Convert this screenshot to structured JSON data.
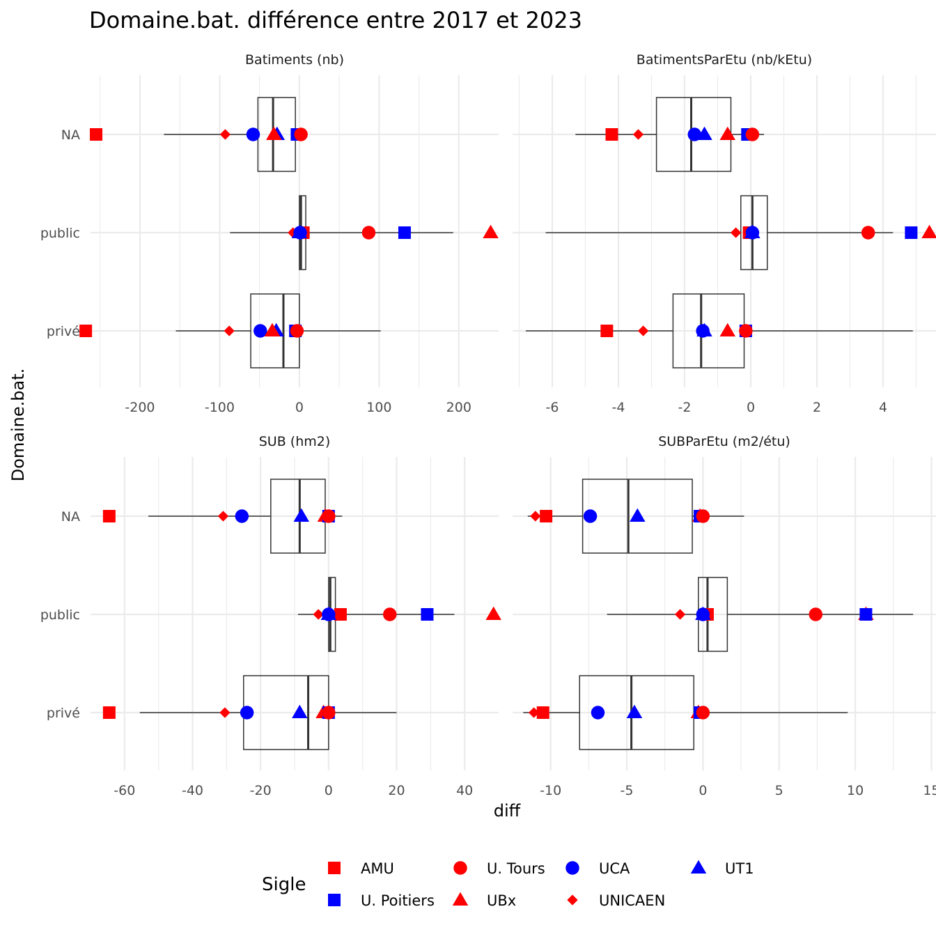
{
  "title": "Domaine.bat. différence entre 2017 et 2023",
  "chart_data": {
    "type": "boxplot-facets",
    "x_label": "diff",
    "y_label": "Domaine.bat.",
    "categories": [
      "NA",
      "public",
      "privé"
    ],
    "legend": {
      "title": "Sigle",
      "entries": [
        {
          "name": "AMU",
          "color": "#ff0000",
          "shape": "square"
        },
        {
          "name": "U. Tours",
          "color": "#ff0000",
          "shape": "circle"
        },
        {
          "name": "UCA",
          "color": "#0000ff",
          "shape": "circle"
        },
        {
          "name": "UT1",
          "color": "#0000ff",
          "shape": "triangle"
        },
        {
          "name": "U. Poitiers",
          "color": "#0000ff",
          "shape": "square"
        },
        {
          "name": "UBx",
          "color": "#ff0000",
          "shape": "triangle"
        },
        {
          "name": "UNICAEN",
          "color": "#ff0000",
          "shape": "diamond"
        }
      ]
    },
    "facets": [
      {
        "strip": "Batiments (nb)",
        "xlim": [
          -262,
          250
        ],
        "ticks": [
          -200,
          -100,
          0,
          100,
          200
        ],
        "boxes": {
          "NA": {
            "whisker_lo": -170,
            "q1": -52,
            "median": -33,
            "q3": -5,
            "whisker_hi": 3
          },
          "public": {
            "whisker_lo": -87,
            "q1": 0,
            "median": 2,
            "q3": 8,
            "whisker_hi": 193
          },
          "privé": {
            "whisker_lo": -155,
            "q1": -61,
            "median": -20,
            "q3": 0,
            "whisker_hi": 102
          }
        },
        "points": {
          "AMU": {
            "NA": -255,
            "public": 5,
            "privé": -268
          },
          "U. Tours": {
            "NA": 2,
            "public": 87,
            "privé": -3
          },
          "UCA": {
            "NA": -58,
            "public": 1,
            "privé": -49
          },
          "UT1": {
            "NA": -28,
            "public": 0,
            "privé": -29
          },
          "U. Poitiers": {
            "NA": -3,
            "public": 132,
            "privé": -5
          },
          "UBx": {
            "NA": -32,
            "public": 240,
            "privé": -34
          },
          "UNICAEN": {
            "NA": -93,
            "public": -8,
            "privé": -88
          }
        }
      },
      {
        "strip": "BatimentsParEtu (nb/kEtu)",
        "xlim": [
          -7.2,
          5.6
        ],
        "ticks": [
          -6,
          -4,
          -2,
          0,
          2,
          4
        ],
        "boxes": {
          "NA": {
            "whisker_lo": -5.3,
            "q1": -2.85,
            "median": -1.8,
            "q3": -0.6,
            "whisker_hi": 0.4
          },
          "public": {
            "whisker_lo": -6.2,
            "q1": -0.3,
            "median": 0.05,
            "q3": 0.5,
            "whisker_hi": 4.3
          },
          "privé": {
            "whisker_lo": -6.8,
            "q1": -2.35,
            "median": -1.5,
            "q3": -0.2,
            "whisker_hi": 4.9
          }
        },
        "points": {
          "AMU": {
            "NA": -4.2,
            "public": -0.05,
            "privé": -4.35
          },
          "U. Tours": {
            "NA": 0.05,
            "public": 3.55,
            "privé": -0.15
          },
          "UCA": {
            "NA": -1.7,
            "public": 0.05,
            "privé": -1.45
          },
          "UT1": {
            "NA": -1.4,
            "public": 0.05,
            "privé": -1.4
          },
          "U. Poitiers": {
            "NA": -0.1,
            "public": 4.85,
            "privé": -0.15
          },
          "UBx": {
            "NA": -0.7,
            "public": 5.4,
            "privé": -0.7
          },
          "UNICAEN": {
            "NA": -3.4,
            "public": -0.45,
            "privé": -3.25
          }
        }
      },
      {
        "strip": "SUB (hm2)",
        "xlim": [
          -70,
          50
        ],
        "ticks": [
          -60,
          -40,
          -20,
          0,
          20,
          40
        ],
        "boxes": {
          "NA": {
            "whisker_lo": -53,
            "q1": -17,
            "median": -8.5,
            "q3": -1,
            "whisker_hi": 4
          },
          "public": {
            "whisker_lo": -9,
            "q1": 0,
            "median": 0.5,
            "q3": 2,
            "whisker_hi": 37
          },
          "privé": {
            "whisker_lo": -55.5,
            "q1": -25,
            "median": -6,
            "q3": 0,
            "whisker_hi": 20
          }
        },
        "points": {
          "AMU": {
            "NA": -64.5,
            "public": 3.5,
            "privé": -64.5
          },
          "U. Tours": {
            "NA": 0,
            "public": 18,
            "privé": 0
          },
          "UCA": {
            "NA": -25.5,
            "public": 0,
            "privé": -24
          },
          "UT1": {
            "NA": -8,
            "public": 0,
            "privé": -8.5
          },
          "U. Poitiers": {
            "NA": 0,
            "public": 29,
            "privé": 0
          },
          "UBx": {
            "NA": -1,
            "public": 48.5,
            "privé": -1.5
          },
          "UNICAEN": {
            "NA": -31,
            "public": -3,
            "privé": -30.5
          }
        }
      },
      {
        "strip": "SUBParEtu (m2/étu)",
        "xlim": [
          -12.5,
          15.3
        ],
        "ticks": [
          -10,
          -5,
          0,
          5,
          10,
          15
        ],
        "boxes": {
          "NA": {
            "whisker_lo": -11.5,
            "q1": -7.9,
            "median": -4.9,
            "q3": -0.7,
            "whisker_hi": 2.7
          },
          "public": {
            "whisker_lo": -6.3,
            "q1": -0.3,
            "median": 0.3,
            "q3": 1.6,
            "whisker_hi": 13.8
          },
          "privé": {
            "whisker_lo": -11.8,
            "q1": -8.1,
            "median": -4.7,
            "q3": -0.6,
            "whisker_hi": 9.5
          }
        },
        "points": {
          "AMU": {
            "NA": -10.3,
            "public": 0.3,
            "privé": -10.5
          },
          "U. Tours": {
            "NA": 0,
            "public": 7.4,
            "privé": 0
          },
          "UCA": {
            "NA": -7.4,
            "public": 0,
            "privé": -6.9
          },
          "UT1": {
            "NA": -4.3,
            "public": 0,
            "privé": -4.5
          },
          "U. Poitiers": {
            "NA": -0.2,
            "public": 10.7,
            "privé": -0.2
          },
          "UBx": {
            "NA": -0.2,
            "public": 10.7,
            "privé": -0.3
          },
          "UNICAEN": {
            "NA": -11.0,
            "public": -1.5,
            "privé": -11.1
          }
        }
      }
    ]
  }
}
